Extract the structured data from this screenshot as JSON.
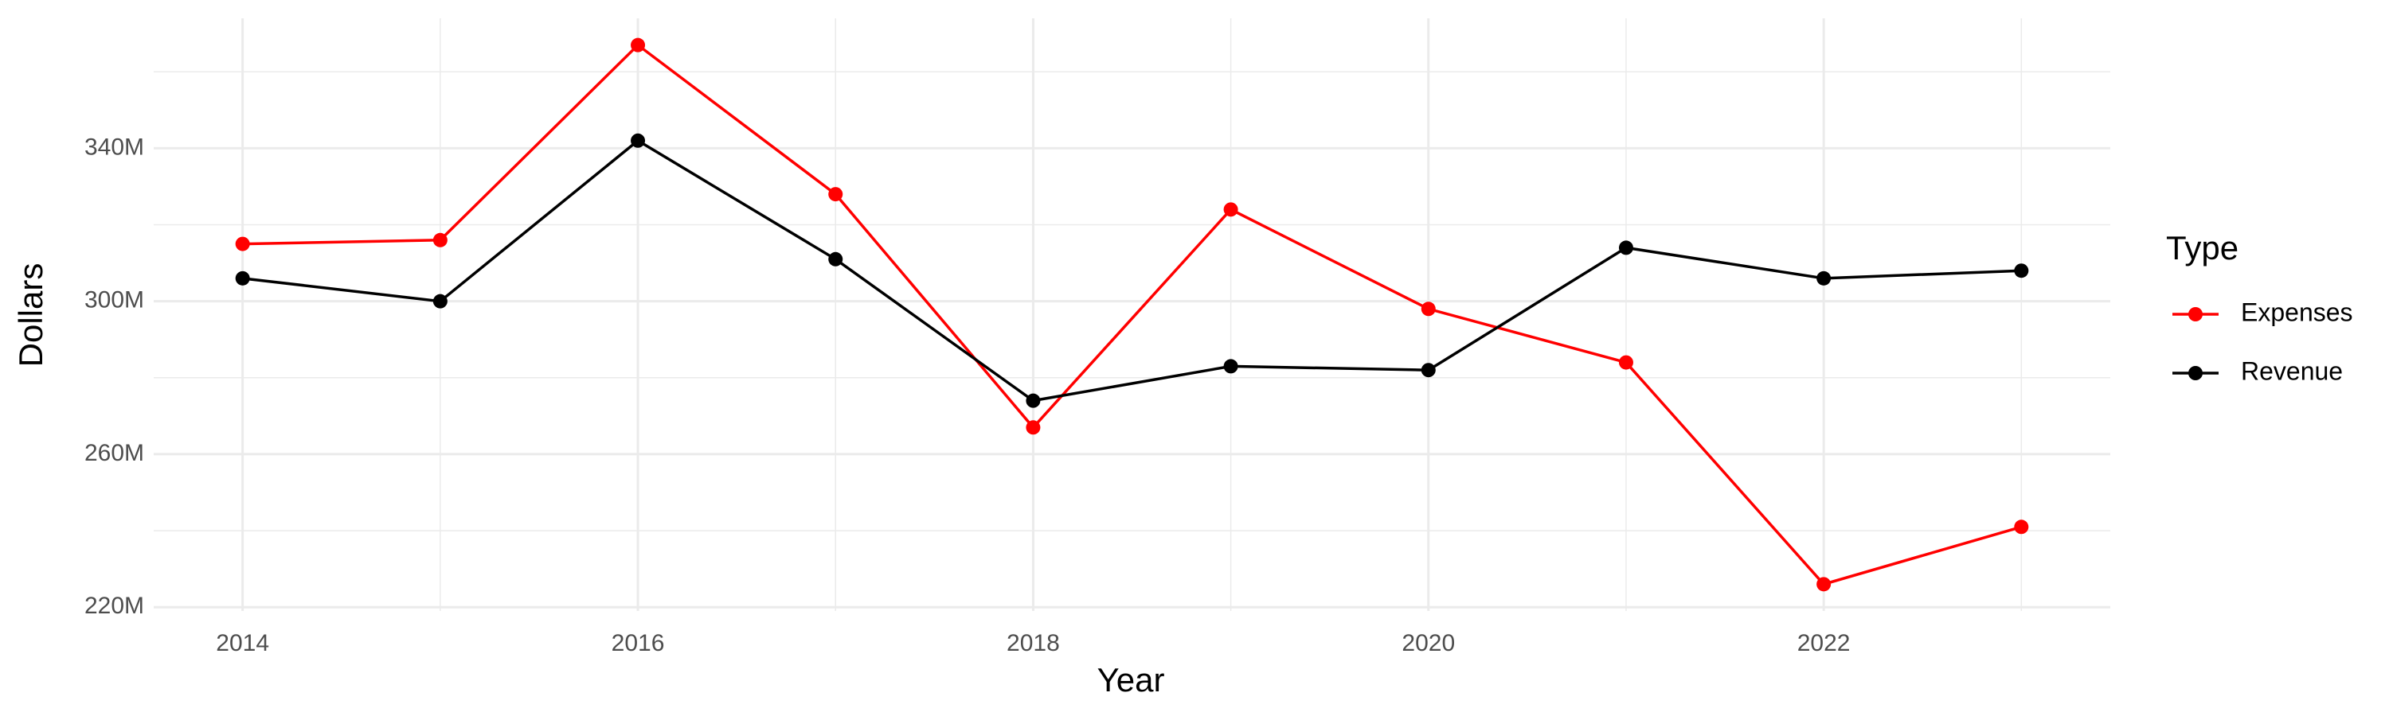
{
  "chart_data": {
    "type": "line",
    "x_label": "Year",
    "y_label": "Dollars",
    "legend_title": "Type",
    "x": [
      2014,
      2015,
      2016,
      2017,
      2018,
      2019,
      2020,
      2021,
      2022,
      2023
    ],
    "series": [
      {
        "name": "Expenses",
        "color": "#ff0000",
        "values": [
          315000000,
          316000000,
          367000000,
          328000000,
          267000000,
          324000000,
          298000000,
          284000000,
          226000000,
          241000000
        ]
      },
      {
        "name": "Revenue",
        "color": "#000000",
        "values": [
          306000000,
          300000000,
          342000000,
          311000000,
          274000000,
          283000000,
          282000000,
          314000000,
          306000000,
          308000000
        ]
      }
    ],
    "xlim": [
      2013.55,
      2023.45
    ],
    "xticks": [
      2014,
      2016,
      2018,
      2020,
      2022
    ],
    "x_minor_ticks": [
      2015,
      2017,
      2019,
      2021,
      2023
    ],
    "ylim": [
      219000000,
      374000000
    ],
    "yticks": [
      {
        "value": 220000000,
        "label": "220M"
      },
      {
        "value": 260000000,
        "label": "260M"
      },
      {
        "value": 300000000,
        "label": "300M"
      },
      {
        "value": 340000000,
        "label": "340M"
      }
    ],
    "y_minor_ticks": [
      240000000,
      280000000,
      320000000,
      360000000
    ],
    "grid": true,
    "legend": "right"
  }
}
